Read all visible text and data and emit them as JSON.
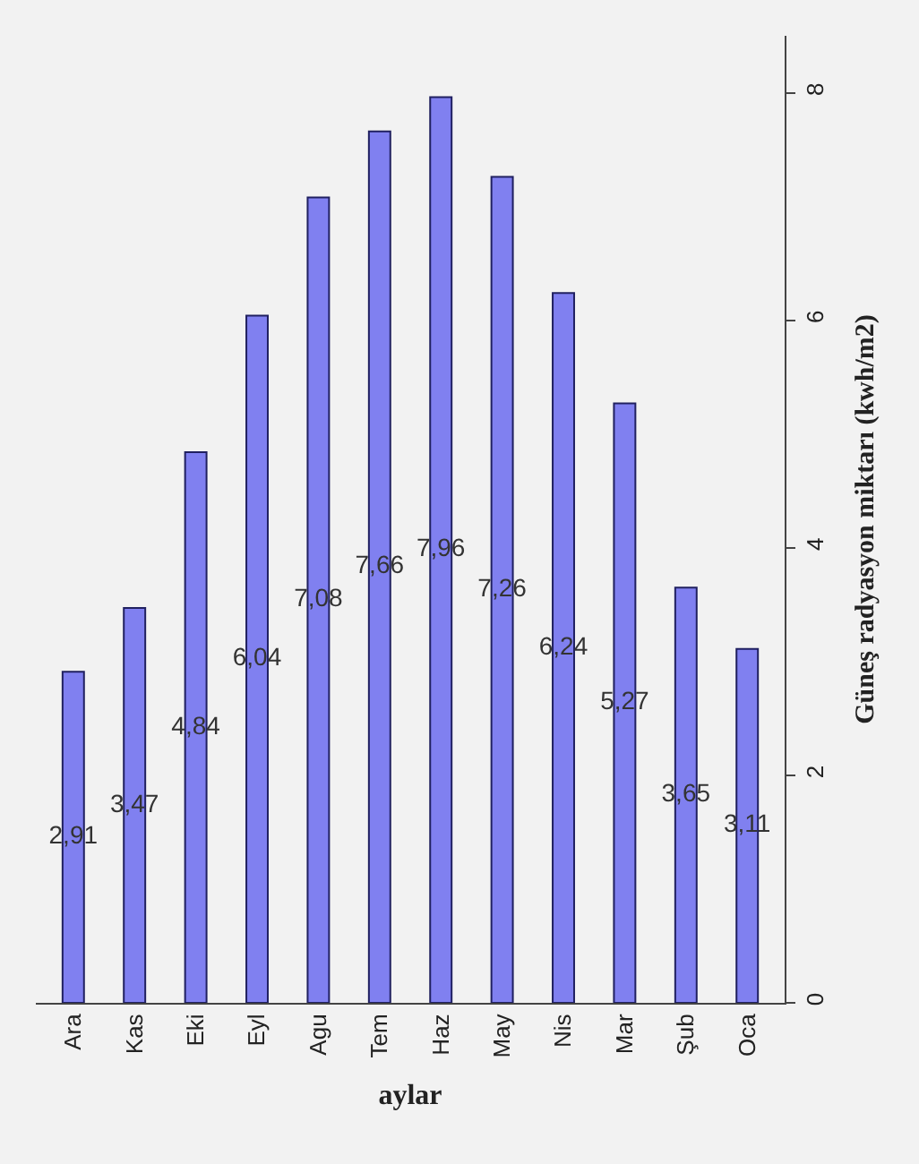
{
  "chart_data": {
    "type": "bar",
    "xlabel": "aylar",
    "ylabel": "Güneş radyasyon miktarı (kwh/m2)",
    "categories": [
      "Ara",
      "Kas",
      "Eki",
      "Eyl",
      "Agu",
      "Tem",
      "Haz",
      "May",
      "Nis",
      "Mar",
      "Şub",
      "Oca"
    ],
    "values": [
      2.91,
      3.47,
      4.84,
      6.04,
      7.08,
      7.66,
      7.96,
      7.26,
      6.24,
      5.27,
      3.65,
      3.11
    ],
    "value_labels": [
      "2,91",
      "3,47",
      "4,84",
      "6,04",
      "7,08",
      "7,66",
      "7,96",
      "7,26",
      "6,24",
      "5,27",
      "3,65",
      "3,11"
    ],
    "color": "#8080f0",
    "ylim": [
      0,
      8.5
    ],
    "yticks": [
      0,
      2,
      4,
      6,
      8
    ],
    "grid": false
  }
}
